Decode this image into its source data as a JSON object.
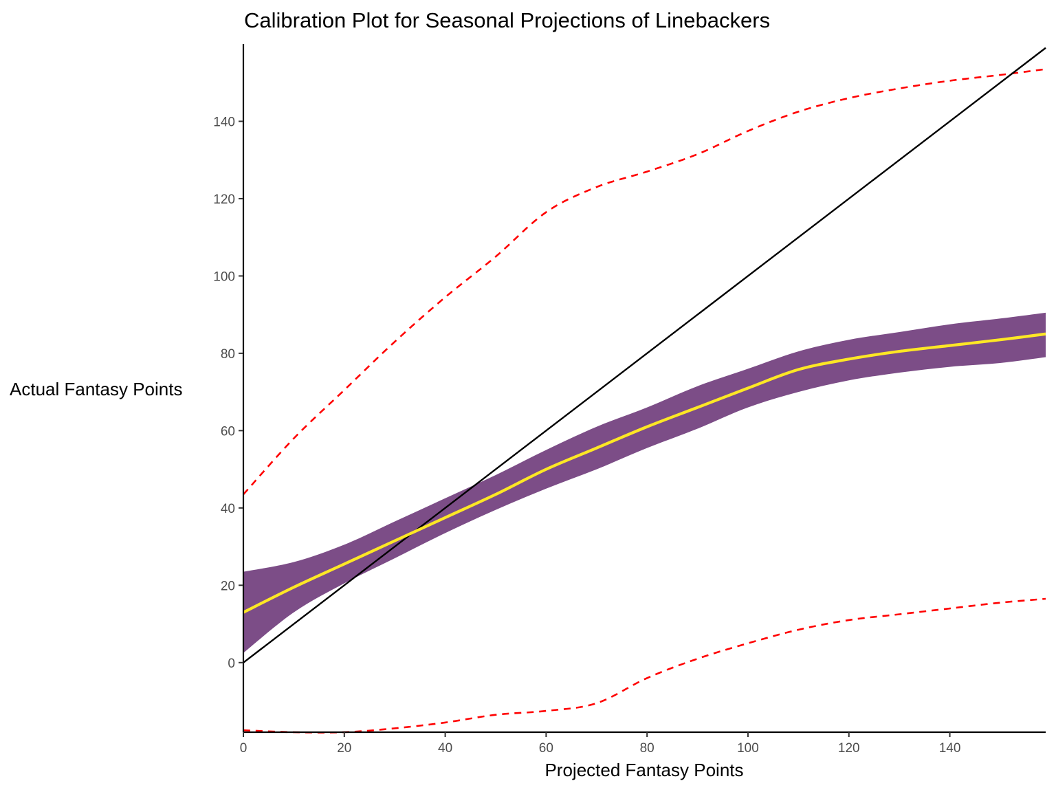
{
  "chart_data": {
    "type": "line",
    "title": "Calibration Plot for Seasonal Projections of Linebackers",
    "xlabel": "Projected Fantasy Points",
    "ylabel": "Actual Fantasy Points",
    "xlim": [
      0,
      159
    ],
    "ylim": [
      -18,
      160
    ],
    "x_ticks": [
      0,
      20,
      40,
      60,
      80,
      100,
      120,
      140
    ],
    "y_ticks": [
      0,
      20,
      40,
      60,
      80,
      100,
      120,
      140
    ],
    "grid": false,
    "legend": "none",
    "x": [
      0,
      10,
      20,
      30,
      40,
      50,
      60,
      70,
      80,
      90,
      100,
      110,
      120,
      130,
      140,
      150,
      159
    ],
    "series": [
      {
        "role": "fitted-smooth",
        "color": "#fde725",
        "values": [
          13,
          19.5,
          25.5,
          31.5,
          37.5,
          43.5,
          50,
          55.5,
          61,
          66,
          71,
          75.8,
          78.5,
          80.5,
          82,
          83.5,
          85
        ]
      },
      {
        "role": "confidence-band",
        "color": "#440154",
        "opacity": 0.7,
        "lower": [
          2.5,
          13,
          20.5,
          27,
          33.5,
          39.5,
          45,
          50,
          55.5,
          60.5,
          66,
          70,
          73,
          75,
          76.5,
          77.5,
          79
        ],
        "upper": [
          23.5,
          26,
          30.5,
          36.5,
          42.5,
          48.5,
          55,
          61,
          66,
          71.5,
          76,
          80.5,
          83.5,
          85.5,
          87.5,
          89,
          90.5
        ]
      },
      {
        "role": "upper-interval",
        "color": "#ff0000",
        "dash": "dashed",
        "values": [
          43.5,
          58,
          70.5,
          83,
          94.5,
          105,
          116.5,
          123,
          127,
          131.5,
          137.5,
          142.5,
          146,
          148.5,
          150.5,
          152,
          153.5
        ]
      },
      {
        "role": "lower-interval",
        "color": "#ff0000",
        "dash": "dashed",
        "values": [
          -17.5,
          -18,
          -18,
          -17,
          -15.5,
          -13.5,
          -12.5,
          -10.5,
          -4,
          1,
          5,
          8.5,
          11,
          12.5,
          14,
          15.5,
          16.5
        ]
      },
      {
        "role": "identity-line",
        "color": "#000000",
        "x": [
          0,
          159
        ],
        "values": [
          0,
          159
        ]
      }
    ]
  }
}
